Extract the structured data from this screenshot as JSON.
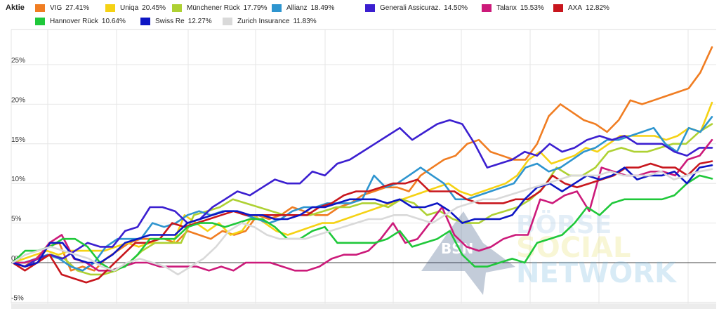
{
  "legend": {
    "title": "Aktie"
  },
  "watermark": {
    "line1": "BÖRSE",
    "line2": "SOCIAL",
    "line3": "NETWORK",
    "logo": "BSN"
  },
  "chart_data": {
    "type": "line",
    "title": "",
    "xlabel": "",
    "ylabel": "",
    "ylim": [
      -5,
      28
    ],
    "yticks": [
      25,
      20,
      15,
      10,
      5,
      0,
      -5
    ],
    "ytick_labels": [
      "25%",
      "20%",
      "15%",
      "10%",
      "5%",
      "0%",
      "-5%"
    ],
    "grid": true,
    "legend_position": "top",
    "series": [
      {
        "name": "VIG",
        "pct": "27.41%",
        "color": "#f07d22",
        "values": [
          0,
          -0.5,
          0.5,
          2,
          2.5,
          -1,
          -0.5,
          -1,
          0.5,
          1.5,
          2.5,
          3,
          3,
          3,
          2.5,
          4,
          3.5,
          3,
          4,
          3.5,
          4,
          6,
          5.5,
          6,
          7,
          6.5,
          6,
          6,
          7,
          7.5,
          8.5,
          9,
          9.5,
          9.5,
          9,
          11,
          12,
          13,
          13.5,
          15,
          15.5,
          14,
          13.5,
          13,
          13,
          15,
          18.5,
          20,
          19,
          18,
          17.5,
          16.5,
          18,
          20.5,
          20,
          20.5,
          21,
          21.5,
          22,
          24,
          27.2
        ]
      },
      {
        "name": "Uniqa",
        "pct": "20.45%",
        "color": "#f5d214",
        "values": [
          0,
          0.5,
          1,
          1.5,
          1,
          1.5,
          1.5,
          1.5,
          1.5,
          2,
          2.5,
          2,
          2.5,
          2.5,
          2.5,
          6,
          5,
          4,
          5,
          3.5,
          4,
          6,
          5,
          4,
          3.5,
          4,
          4.5,
          5,
          5,
          5.5,
          6,
          6.5,
          7,
          7.5,
          8,
          8.5,
          9,
          9.5,
          10,
          9,
          8.5,
          9,
          9.5,
          10,
          11,
          13,
          14,
          12.5,
          13,
          13.5,
          14.5,
          14,
          15,
          16,
          16,
          16,
          16,
          15.5,
          16,
          17,
          16.5,
          20.2
        ]
      },
      {
        "name": "Münchener Rück",
        "pct": "17.79%",
        "color": "#aed133",
        "values": [
          0,
          0,
          0.5,
          1,
          0.5,
          -1,
          -1.5,
          -1.5,
          -1,
          0,
          1.5,
          2.5,
          2.5,
          2.5,
          6,
          6.5,
          7,
          8,
          7.5,
          7,
          6.5,
          6,
          6,
          6,
          6.5,
          7,
          7,
          7.5,
          7.5,
          7,
          8,
          7.5,
          6,
          6.5,
          5.5,
          5,
          5,
          6,
          6.5,
          7,
          8,
          9.5,
          12,
          11,
          11,
          12,
          14,
          14.5,
          14,
          14,
          14.5,
          15,
          15,
          16.5,
          17.5
        ]
      },
      {
        "name": "Allianz",
        "pct": "18.49%",
        "color": "#2e95cf",
        "values": [
          0,
          0,
          0.5,
          1,
          0.5,
          -0.5,
          -1,
          0,
          2,
          3,
          3,
          3,
          5,
          4.5,
          5,
          6,
          6.5,
          6,
          6.5,
          6.5,
          6,
          5.5,
          5,
          5.5,
          6.5,
          7,
          7,
          7.5,
          7.5,
          7.5,
          8,
          11,
          9.5,
          10,
          11,
          12,
          11,
          10,
          8,
          8,
          8.5,
          9,
          9.5,
          10,
          12,
          12.5,
          11.5,
          12,
          13,
          14,
          14.5,
          15.5,
          15.5,
          16,
          16.5,
          17,
          15,
          14,
          17,
          16.5,
          18.4
        ]
      },
      {
        "name": "Generali Assicuraz.",
        "pct": "14.50%",
        "color": "#3b1fd0",
        "values": [
          0,
          -0.5,
          0.5,
          1,
          0.5,
          1.5,
          2.5,
          2,
          2,
          4,
          4.5,
          7,
          7,
          6.5,
          5,
          5.5,
          7,
          8,
          9,
          8.5,
          9.5,
          10.5,
          10,
          10,
          11.5,
          11,
          12.5,
          13,
          14,
          15,
          16,
          17,
          15.5,
          16.5,
          17.5,
          18,
          17.5,
          15,
          12,
          12.5,
          13,
          14,
          13.5,
          15,
          14,
          14.5,
          15.5,
          16,
          15.5,
          16,
          15,
          15,
          15,
          14,
          13.5,
          14.5,
          14.5
        ]
      },
      {
        "name": "Talanx",
        "pct": "15.53%",
        "color": "#cc1a7a",
        "values": [
          0,
          0,
          0.5,
          2.5,
          3.5,
          0.5,
          0,
          -1,
          -1,
          -0.5,
          0,
          0,
          -0.5,
          -0.5,
          -0.5,
          -0.5,
          -1,
          -0.5,
          -1,
          0,
          0,
          0,
          -0.5,
          -1,
          -1,
          -0.5,
          0.5,
          1,
          1,
          1.5,
          3,
          5,
          2.5,
          3,
          5,
          7,
          3.5,
          2,
          1.5,
          2,
          3,
          3.5,
          3.5,
          8,
          7.5,
          8.5,
          9,
          6.5,
          12,
          11.5,
          11,
          11,
          11.5,
          11.5,
          11,
          13,
          13.5,
          15.5
        ]
      },
      {
        "name": "AXA",
        "pct": "12.82%",
        "color": "#c8161d",
        "values": [
          0,
          -1,
          0,
          1,
          -1.5,
          -2,
          -2.5,
          -2,
          -0.5,
          1,
          2.5,
          2.5,
          3,
          5,
          4.5,
          5,
          5.5,
          6,
          6.5,
          6,
          6,
          6,
          6,
          6,
          6,
          7,
          7.5,
          8.5,
          9,
          9,
          9.5,
          10,
          10,
          10.5,
          9,
          9,
          9,
          8,
          7.5,
          7.5,
          7.5,
          8,
          8,
          9,
          11,
          10,
          9.5,
          10,
          10.5,
          11,
          12,
          12,
          12.5,
          12,
          12,
          11,
          12.5,
          12.8
        ]
      },
      {
        "name": "Hannover Rück",
        "pct": "10.64%",
        "color": "#1fc83a",
        "values": [
          0,
          1.5,
          1.5,
          2,
          3,
          3,
          2,
          0,
          -1,
          -0.5,
          1,
          3,
          3,
          3,
          4.5,
          5,
          5,
          4.5,
          5,
          5.5,
          5.5,
          4.5,
          3,
          3,
          4,
          4.5,
          2.5,
          2.5,
          2.5,
          2.5,
          3,
          4,
          2,
          2.5,
          3,
          4,
          1,
          -0.5,
          -0.5,
          0,
          0.5,
          0,
          2.5,
          3,
          3.5,
          5,
          7,
          6,
          7.5,
          8,
          8,
          8,
          8,
          8.5,
          10,
          11,
          10.6
        ]
      },
      {
        "name": "Swiss Re",
        "pct": "12.27%",
        "color": "#0d16c4",
        "values": [
          0,
          -0.5,
          0,
          2.5,
          2.5,
          0.5,
          0,
          0,
          1,
          2.5,
          3,
          3.5,
          3.5,
          3.5,
          5,
          5.5,
          6,
          6.5,
          6.5,
          6,
          6,
          5.5,
          5.5,
          6,
          7,
          7,
          7.5,
          8,
          8,
          8,
          7.5,
          8,
          7,
          7,
          7.5,
          6.5,
          5,
          5.5,
          5.5,
          5.5,
          6,
          8,
          9.5,
          10,
          9,
          10,
          11,
          10.5,
          11,
          12,
          10.5,
          11,
          11,
          11.5,
          10,
          12,
          12.3
        ]
      },
      {
        "name": "Zurich Insurance",
        "pct": "11.83%",
        "color": "#d9d9d9",
        "values": [
          0,
          1,
          1.5,
          2,
          1.5,
          1,
          0.5,
          -0.5,
          -1,
          0,
          0.5,
          0,
          -0.5,
          -1.5,
          -0.5,
          0.5,
          2,
          4,
          5,
          4.5,
          3.5,
          3,
          3,
          3,
          3.5,
          4,
          4.5,
          5,
          5.5,
          5.5,
          6,
          6,
          5.5,
          5,
          6,
          7,
          7.5,
          8,
          8,
          8.5,
          9,
          9.5,
          10,
          10.5,
          11,
          11,
          11,
          11.5,
          11,
          11,
          11,
          11.5,
          10.5,
          11,
          11.5,
          11.8
        ]
      }
    ]
  }
}
